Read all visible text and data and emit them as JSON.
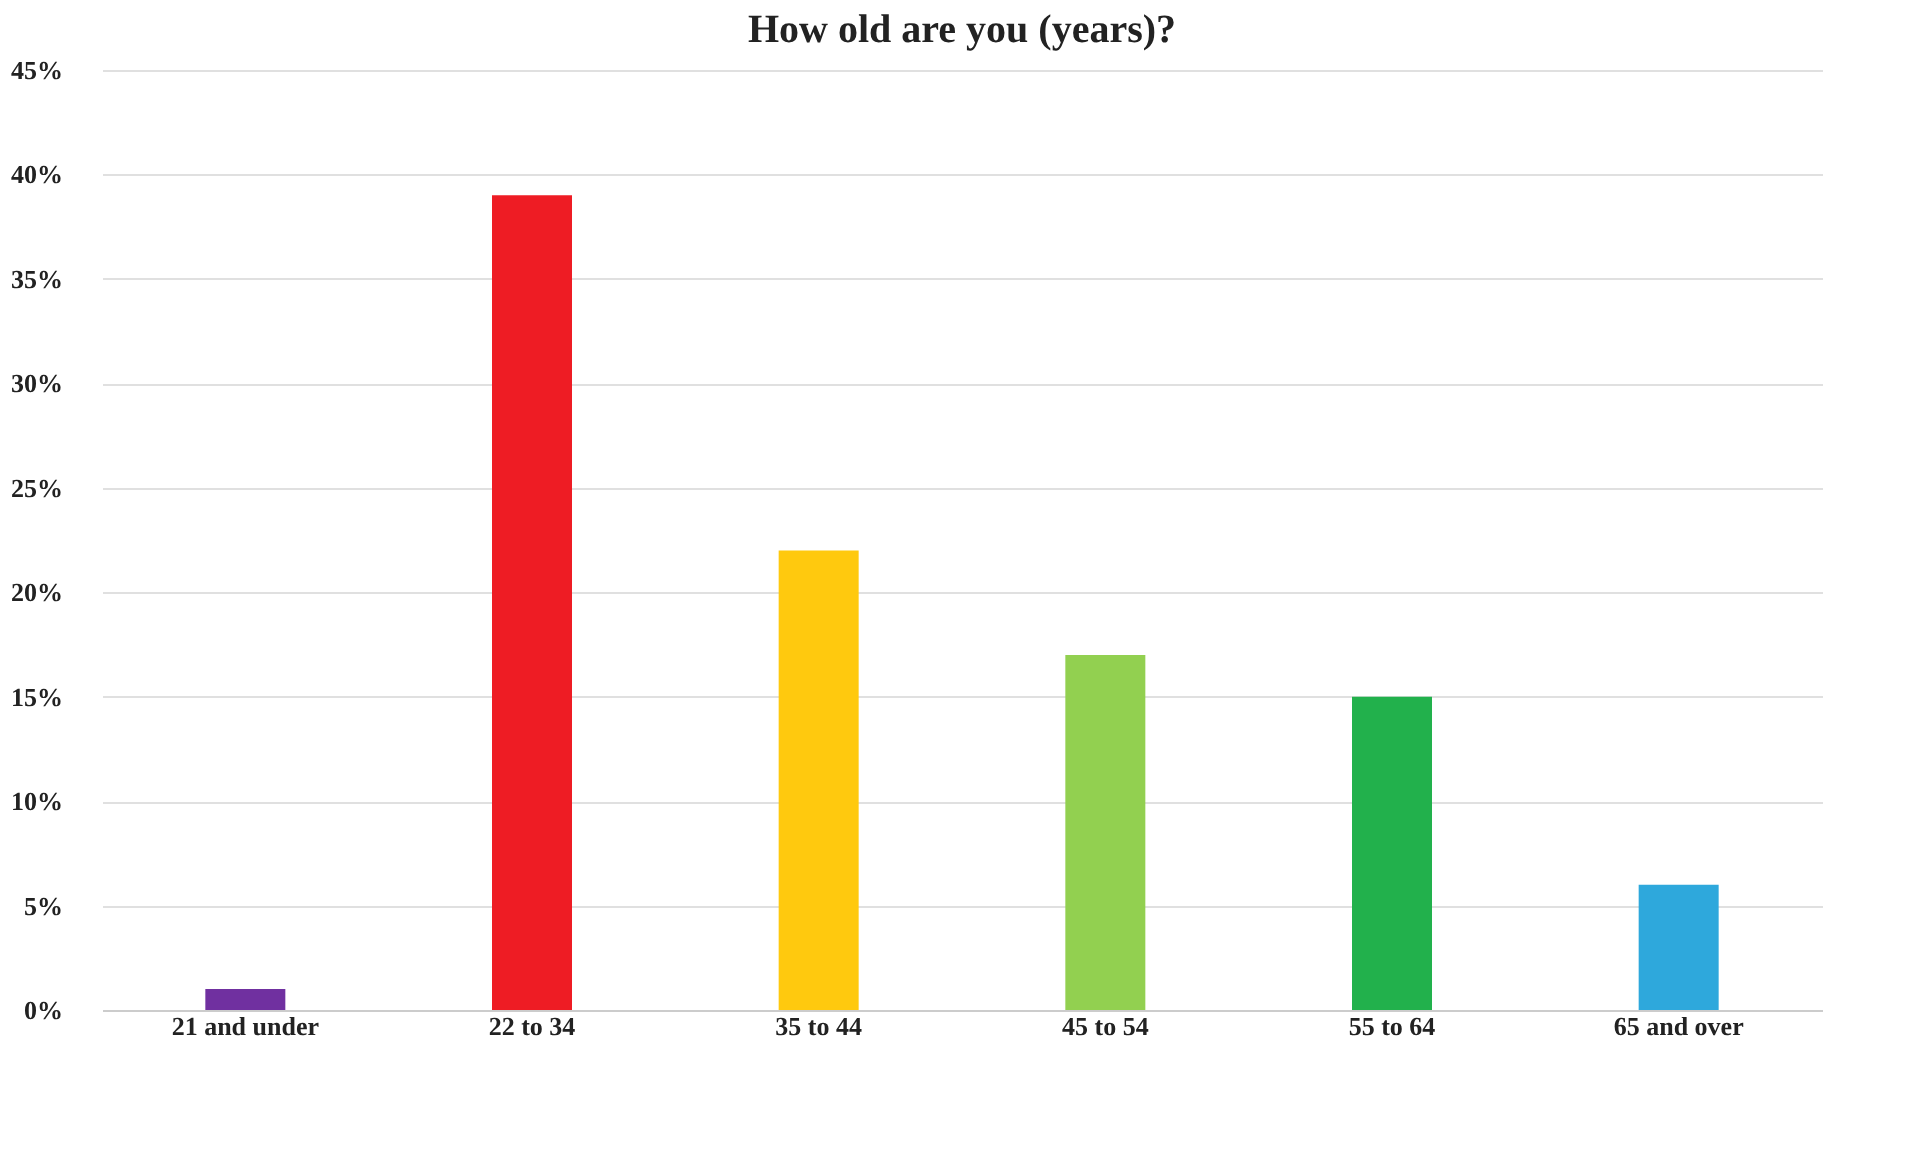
{
  "chart_data": {
    "type": "bar",
    "title": "How old are you (years)?",
    "categories": [
      "21 and under",
      "22 to 34",
      "35 to 44",
      "45 to 54",
      "55 to 64",
      "65 and over"
    ],
    "values": [
      1,
      39,
      22,
      17,
      15,
      6
    ],
    "colors": [
      "#7030a0",
      "#ee1c24",
      "#ffc90e",
      "#92d050",
      "#22b14c",
      "#2ea8dc"
    ],
    "ylim": [
      0,
      45
    ],
    "yticks": [
      {
        "value": 0,
        "label": "0%"
      },
      {
        "value": 5,
        "label": "5%"
      },
      {
        "value": 10,
        "label": "10%"
      },
      {
        "value": 15,
        "label": "15%"
      },
      {
        "value": 20,
        "label": "20%"
      },
      {
        "value": 25,
        "label": "25%"
      },
      {
        "value": 30,
        "label": "30%"
      },
      {
        "value": 35,
        "label": "35%"
      },
      {
        "value": 40,
        "label": "40%"
      },
      {
        "value": 45,
        "label": "45%"
      }
    ],
    "grid": "y"
  }
}
